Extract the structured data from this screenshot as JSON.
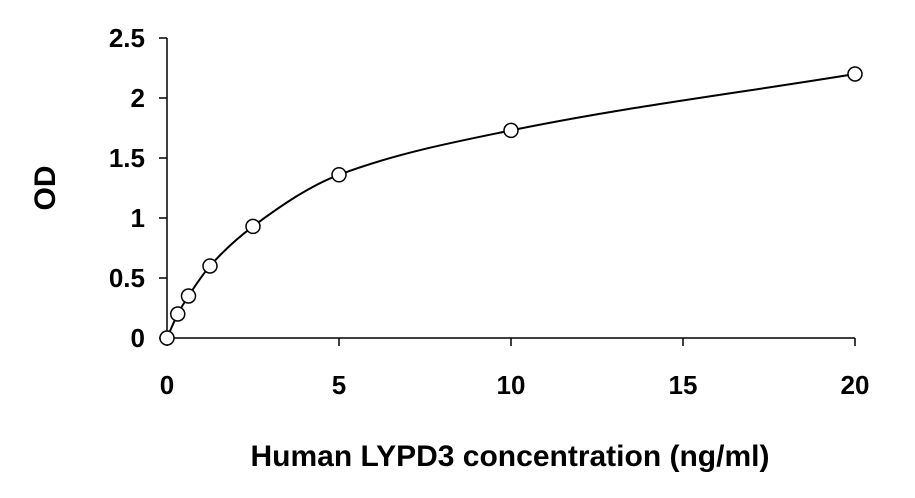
{
  "chart_data": {
    "type": "scatter",
    "title": "",
    "xlabel": "Human LYPD3 concentration (ng/ml)",
    "ylabel": "OD",
    "xlim": [
      0,
      20
    ],
    "ylim": [
      0,
      2.5
    ],
    "x_ticks": [
      0,
      5,
      10,
      15,
      20
    ],
    "y_ticks": [
      0,
      0.5,
      1,
      1.5,
      2,
      2.5
    ],
    "x_tick_labels": [
      "0",
      "5",
      "10",
      "15",
      "20"
    ],
    "y_tick_labels": [
      "0",
      "0.5",
      "1",
      "1.5",
      "2",
      "2.5"
    ],
    "grid": false,
    "legend": "none",
    "series": [
      {
        "x": [
          0,
          0.3125,
          0.625,
          1.25,
          2.5,
          5,
          10,
          20
        ],
        "y": [
          0,
          0.2,
          0.35,
          0.6,
          0.93,
          1.36,
          1.73,
          2.2
        ],
        "marker": "open-circle",
        "line": "smooth",
        "color": "#000000"
      }
    ]
  }
}
